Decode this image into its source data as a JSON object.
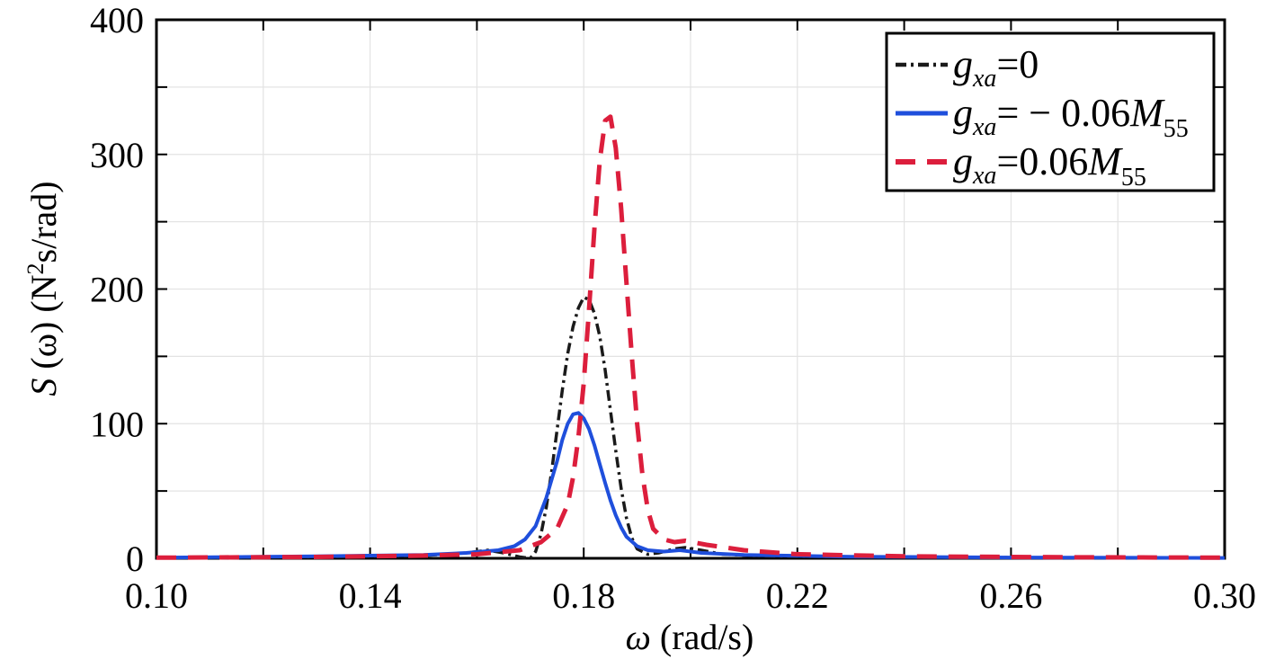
{
  "chart_data": {
    "type": "line",
    "title": "",
    "xlabel": {
      "symbol": "ω",
      "unit": "(rad/s)"
    },
    "ylabel": {
      "symbol": "S",
      "arg": "(ω)",
      "unit_prefix": "(N",
      "unit_sup": "2",
      "unit_suffix": "s/rad)"
    },
    "xlim": [
      0.1,
      0.3
    ],
    "ylim": [
      0,
      400
    ],
    "xticks": [
      0.1,
      0.14,
      0.18,
      0.22,
      0.26,
      0.3
    ],
    "xtick_labels": [
      "0.10",
      "0.14",
      "0.18",
      "0.22",
      "0.26",
      "0.30"
    ],
    "yticks": [
      0,
      100,
      200,
      300,
      400
    ],
    "ytick_labels": [
      "0",
      "100",
      "200",
      "300",
      "400"
    ],
    "grid": true,
    "legend_position": "top-right",
    "series": [
      {
        "name": "gxa=0",
        "legend": {
          "var": "g",
          "sub": "xa",
          "eq": "=0",
          "coef": "",
          "mvar": "",
          "msub": ""
        },
        "color": "#1a1a1a",
        "dash": "dashdot",
        "points": [
          [
            0.1,
            0.5
          ],
          [
            0.13,
            1
          ],
          [
            0.15,
            2
          ],
          [
            0.158,
            4
          ],
          [
            0.162,
            6
          ],
          [
            0.165,
            4
          ],
          [
            0.168,
            1
          ],
          [
            0.17,
            0
          ],
          [
            0.171,
            5
          ],
          [
            0.172,
            18
          ],
          [
            0.173,
            38
          ],
          [
            0.174,
            65
          ],
          [
            0.175,
            95
          ],
          [
            0.176,
            125
          ],
          [
            0.177,
            152
          ],
          [
            0.178,
            172
          ],
          [
            0.179,
            186
          ],
          [
            0.18,
            194
          ],
          [
            0.181,
            192
          ],
          [
            0.182,
            182
          ],
          [
            0.183,
            165
          ],
          [
            0.184,
            140
          ],
          [
            0.185,
            110
          ],
          [
            0.186,
            80
          ],
          [
            0.187,
            52
          ],
          [
            0.188,
            30
          ],
          [
            0.189,
            15
          ],
          [
            0.19,
            7
          ],
          [
            0.192,
            3
          ],
          [
            0.194,
            4
          ],
          [
            0.197,
            7
          ],
          [
            0.199,
            8
          ],
          [
            0.202,
            6
          ],
          [
            0.206,
            3
          ],
          [
            0.215,
            1.5
          ],
          [
            0.24,
            0.8
          ],
          [
            0.27,
            0.5
          ],
          [
            0.3,
            0.3
          ]
        ]
      },
      {
        "name": "gxa=−0.06M55",
        "legend": {
          "var": "g",
          "sub": "xa",
          "eq": "= − ",
          "coef": "0.06",
          "mvar": "M",
          "msub": "55"
        },
        "color": "#1f4fdc",
        "dash": "solid",
        "points": [
          [
            0.1,
            0.5
          ],
          [
            0.13,
            1.5
          ],
          [
            0.15,
            2.5
          ],
          [
            0.158,
            4
          ],
          [
            0.164,
            6
          ],
          [
            0.167,
            9
          ],
          [
            0.169,
            14
          ],
          [
            0.171,
            24
          ],
          [
            0.173,
            45
          ],
          [
            0.175,
            72
          ],
          [
            0.176,
            88
          ],
          [
            0.177,
            100
          ],
          [
            0.178,
            107
          ],
          [
            0.179,
            108
          ],
          [
            0.18,
            104
          ],
          [
            0.181,
            96
          ],
          [
            0.182,
            84
          ],
          [
            0.183,
            70
          ],
          [
            0.184,
            56
          ],
          [
            0.185,
            43
          ],
          [
            0.186,
            32
          ],
          [
            0.187,
            23
          ],
          [
            0.188,
            16
          ],
          [
            0.19,
            9
          ],
          [
            0.192,
            6
          ],
          [
            0.195,
            5
          ],
          [
            0.198,
            6
          ],
          [
            0.202,
            4
          ],
          [
            0.21,
            2.5
          ],
          [
            0.23,
            1.2
          ],
          [
            0.26,
            0.6
          ],
          [
            0.3,
            0.3
          ]
        ]
      },
      {
        "name": "gxa=0.06M55",
        "legend": {
          "var": "g",
          "sub": "xa",
          "eq": "=",
          "coef": "0.06",
          "mvar": "M",
          "msub": "55"
        },
        "color": "#dc1e3c",
        "dash": "dashed",
        "points": [
          [
            0.1,
            0.5
          ],
          [
            0.13,
            1
          ],
          [
            0.15,
            2
          ],
          [
            0.16,
            3
          ],
          [
            0.168,
            6
          ],
          [
            0.172,
            12
          ],
          [
            0.175,
            22
          ],
          [
            0.177,
            40
          ],
          [
            0.178,
            60
          ],
          [
            0.179,
            90
          ],
          [
            0.18,
            130
          ],
          [
            0.181,
            185
          ],
          [
            0.182,
            245
          ],
          [
            0.183,
            295
          ],
          [
            0.184,
            325
          ],
          [
            0.185,
            328
          ],
          [
            0.186,
            305
          ],
          [
            0.187,
            260
          ],
          [
            0.188,
            205
          ],
          [
            0.189,
            150
          ],
          [
            0.19,
            100
          ],
          [
            0.191,
            62
          ],
          [
            0.192,
            36
          ],
          [
            0.193,
            22
          ],
          [
            0.195,
            14
          ],
          [
            0.197,
            12
          ],
          [
            0.199,
            13
          ],
          [
            0.203,
            10
          ],
          [
            0.21,
            6
          ],
          [
            0.22,
            3
          ],
          [
            0.24,
            1.5
          ],
          [
            0.27,
            0.8
          ],
          [
            0.3,
            0.5
          ]
        ]
      }
    ]
  }
}
